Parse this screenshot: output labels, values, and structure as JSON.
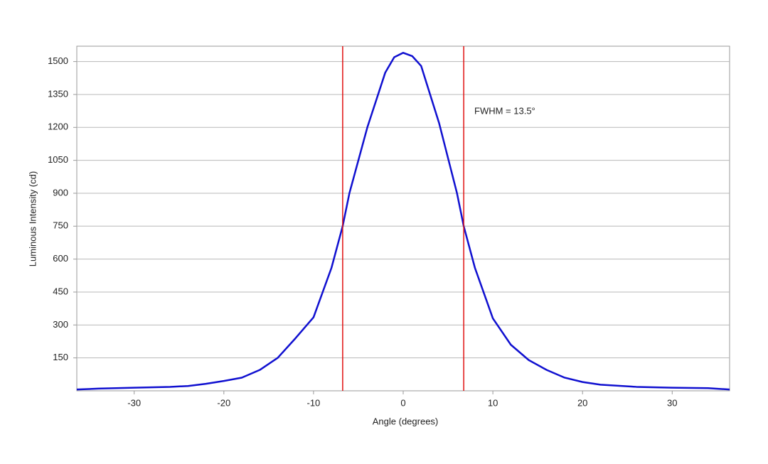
{
  "chart_data": {
    "type": "line",
    "x_label": "Angle (degrees)",
    "y_label": "Luminous Intensity (cd)",
    "annotation": "FWHM = 13.5°",
    "xlim": [
      -36.4,
      36.4
    ],
    "xticks": [
      -30,
      -20,
      -10,
      0,
      10,
      20,
      30
    ],
    "ylim": [
      0,
      1570
    ],
    "yticks": [
      150,
      300,
      450,
      600,
      750,
      900,
      1050,
      1200,
      1350,
      1500
    ],
    "grid": true,
    "x": [
      -36.4,
      -34,
      -30,
      -26,
      -24,
      -22,
      -20,
      -18,
      -16,
      -14,
      -12,
      -10,
      -8,
      -6.75,
      -6,
      -4,
      -2,
      -1,
      0,
      1,
      2,
      4,
      6,
      6.75,
      8,
      10,
      12,
      14,
      16,
      18,
      20,
      22,
      26,
      30,
      34,
      36.4
    ],
    "series": [
      {
        "color": "#1010d0",
        "values": [
          6,
          10,
          14,
          18,
          22,
          32,
          45,
          60,
          95,
          150,
          240,
          335,
          560,
          750,
          900,
          1200,
          1450,
          1520,
          1540,
          1525,
          1480,
          1220,
          900,
          750,
          560,
          330,
          210,
          140,
          95,
          60,
          40,
          28,
          18,
          14,
          12,
          6
        ]
      }
    ],
    "vlines": {
      "color": "#e01010",
      "x": [
        -6.75,
        6.75
      ]
    }
  }
}
